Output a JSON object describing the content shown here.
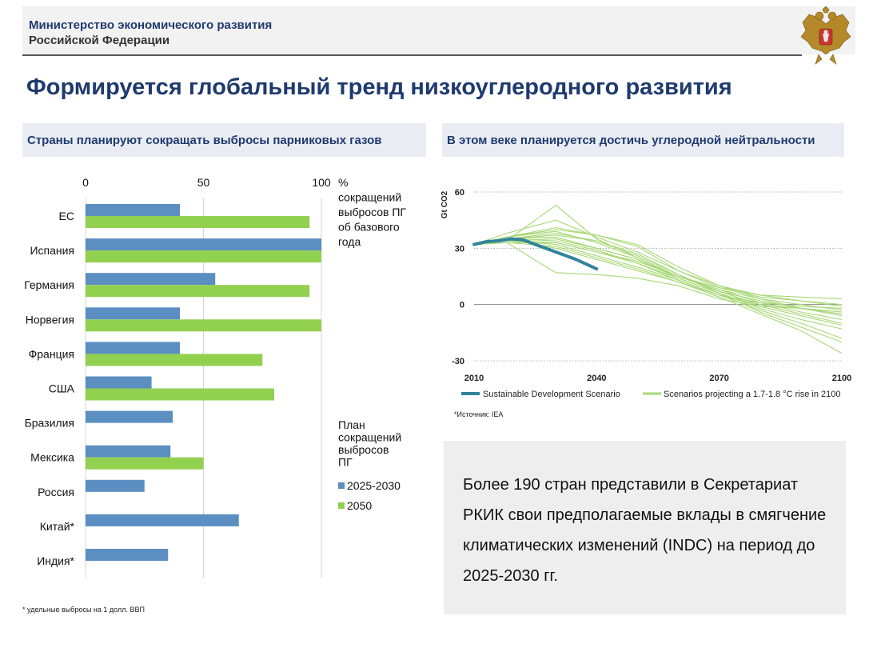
{
  "header": {
    "org_line1": "Министерство экономического развития",
    "org_line2": "Российской Федерации"
  },
  "title": "Формируется глобальный тренд низкоуглеродного развития",
  "left_panel": {
    "heading": "Страны планируют сокращать выбросы парниковых газов"
  },
  "right_panel": {
    "heading": "В этом веке планируется достичь углеродной нейтральности"
  },
  "source_note": "*Источник: IEA",
  "footnote": "* удельные выбросы на 1 долл. ВВП",
  "info_text": "Более 190 стран представили в Секретариат РКИК свои предполагаемые вклады в смягчение климатических изменений (INDC) на период до 2025-2030 гг.",
  "colors": {
    "series_2025": "#5b8fc1",
    "series_2050": "#92d050",
    "sds_line": "#31849b",
    "scenario_lines": "#a8d878",
    "title_blue": "#1f3a6e"
  },
  "chart_data": [
    {
      "type": "bar",
      "orientation": "horizontal",
      "categories": [
        "ЕС",
        "Испания",
        "Германия",
        "Норвегия",
        "Франция",
        "США",
        "Бразилия",
        "Мексика",
        "Россия",
        "Китай*",
        "Индия*"
      ],
      "xlim": [
        0,
        100
      ],
      "x_ticks": [
        0,
        50,
        100
      ],
      "xlabel": [
        "%",
        "сокращений",
        "выбросов ПГ",
        "об базового",
        "года"
      ],
      "legend_title": [
        "План",
        "сокращений",
        "выбросов",
        "ПГ"
      ],
      "series": [
        {
          "name": "2025-2030",
          "values": [
            40,
            100,
            55,
            40,
            40,
            28,
            37,
            36,
            25,
            65,
            35
          ]
        },
        {
          "name": "2050",
          "values": [
            95,
            100,
            95,
            100,
            75,
            80,
            null,
            50,
            null,
            null,
            null
          ]
        }
      ]
    },
    {
      "type": "line",
      "ylabel": "Gt CO2",
      "xlim": [
        2010,
        2100
      ],
      "ylim": [
        -30,
        60
      ],
      "x_ticks": [
        2010,
        2040,
        2070,
        2100
      ],
      "y_ticks": [
        60,
        30,
        0,
        -30
      ],
      "legend": [
        "Sustainable Development Scenario",
        "Scenarios projecting a  1.7-1.8 °C rise in 2100"
      ],
      "sds": {
        "x": [
          2010,
          2013,
          2016,
          2019,
          2022,
          2025,
          2030,
          2035,
          2040
        ],
        "y": [
          32,
          33.5,
          34,
          35,
          34.5,
          32,
          28,
          24,
          19
        ]
      },
      "scenarios": [
        {
          "x": [
            2010,
            2018,
            2030,
            2040,
            2050,
            2060,
            2070,
            2080,
            2090,
            2100
          ],
          "y": [
            32,
            34,
            53,
            35,
            25,
            15,
            8,
            3,
            0,
            -3
          ]
        },
        {
          "x": [
            2010,
            2018,
            2030,
            2040,
            2050,
            2060,
            2070,
            2080,
            2090,
            2100
          ],
          "y": [
            32,
            38,
            45,
            36,
            28,
            18,
            10,
            5,
            2,
            -1
          ]
        },
        {
          "x": [
            2010,
            2018,
            2030,
            2040,
            2050,
            2060,
            2070,
            2080,
            2090,
            2100
          ],
          "y": [
            32,
            36,
            40,
            37,
            32,
            20,
            10,
            3,
            -2,
            -6
          ]
        },
        {
          "x": [
            2010,
            2018,
            2030,
            2040,
            2050,
            2060,
            2070,
            2080,
            2090,
            2100
          ],
          "y": [
            32,
            35,
            38,
            34,
            27,
            16,
            7,
            0,
            -5,
            -10
          ]
        },
        {
          "x": [
            2010,
            2018,
            2030,
            2040,
            2050,
            2060,
            2070,
            2080,
            2090,
            2100
          ],
          "y": [
            32,
            34,
            35,
            30,
            24,
            14,
            6,
            -2,
            -8,
            -13
          ]
        },
        {
          "x": [
            2010,
            2018,
            2030,
            2040,
            2050,
            2060,
            2070,
            2080,
            2090,
            2100
          ],
          "y": [
            32,
            33,
            33,
            28,
            22,
            13,
            5,
            -3,
            -10,
            -18
          ]
        },
        {
          "x": [
            2010,
            2018,
            2030,
            2040,
            2050,
            2060,
            2070,
            2080,
            2090,
            2100
          ],
          "y": [
            32,
            35,
            30,
            24,
            18,
            12,
            4,
            -5,
            -14,
            -26
          ]
        },
        {
          "x": [
            2010,
            2018,
            2030,
            2040,
            2050,
            2060,
            2070,
            2080,
            2090,
            2100
          ],
          "y": [
            32,
            33,
            17,
            16,
            14,
            10,
            3,
            -1,
            -2,
            -4
          ]
        },
        {
          "x": [
            2010,
            2018,
            2030,
            2040,
            2050,
            2060,
            2070,
            2080,
            2090,
            2100
          ],
          "y": [
            32,
            36,
            39,
            33,
            25,
            15,
            7,
            2,
            -2,
            -5
          ]
        },
        {
          "x": [
            2010,
            2018,
            2030,
            2040,
            2050,
            2060,
            2070,
            2080,
            2090,
            2100
          ],
          "y": [
            32,
            35,
            36,
            30,
            24,
            15,
            9,
            4,
            2,
            0
          ]
        },
        {
          "x": [
            2010,
            2018,
            2030,
            2040,
            2050,
            2060,
            2070,
            2080,
            2090,
            2100
          ],
          "y": [
            32,
            34,
            33,
            28,
            23,
            15,
            8,
            1,
            -4,
            -8
          ]
        },
        {
          "x": [
            2010,
            2018,
            2030,
            2040,
            2050,
            2060,
            2070,
            2080,
            2090,
            2100
          ],
          "y": [
            32,
            35,
            37,
            34,
            26,
            16,
            6,
            -4,
            -12,
            -20
          ]
        },
        {
          "x": [
            2010,
            2018,
            2030,
            2040,
            2050,
            2060,
            2070,
            2080,
            2090,
            2100
          ],
          "y": [
            32,
            34,
            32,
            26,
            20,
            13,
            5,
            0,
            -2,
            -4
          ]
        },
        {
          "x": [
            2010,
            2018,
            2030,
            2040,
            2050,
            2060,
            2070,
            2080,
            2090,
            2100
          ],
          "y": [
            32,
            36,
            41,
            37,
            31,
            18,
            9,
            5,
            4,
            3
          ]
        },
        {
          "x": [
            2010,
            2018,
            2030,
            2040,
            2050,
            2060,
            2070,
            2080,
            2090,
            2100
          ],
          "y": [
            32,
            35,
            34,
            29,
            22,
            14,
            6,
            -1,
            -6,
            -11
          ]
        },
        {
          "x": [
            2010,
            2018,
            2030,
            2040,
            2050,
            2060,
            2070,
            2080,
            2090,
            2100
          ],
          "y": [
            32,
            33,
            31,
            25,
            19,
            12,
            5,
            1,
            -1,
            -2
          ]
        }
      ]
    }
  ]
}
